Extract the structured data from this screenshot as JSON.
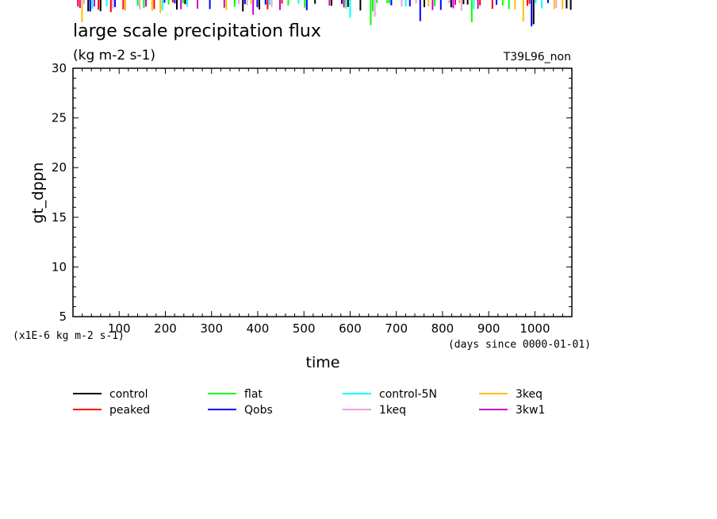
{
  "chart_data": {
    "type": "line",
    "title": "large scale precipitation flux",
    "units": "(kg m-2 s-1)",
    "run_label": "T39L96_non",
    "xlabel": "time",
    "x_unit_note": "(days since 0000-01-01)",
    "ylabel": "gt_dppn",
    "y_scale_note": "(x1E-6 kg m-2 s-1)",
    "xlim": [
      0,
      1080
    ],
    "ylim": [
      5,
      30
    ],
    "x_ticks": [
      100,
      200,
      300,
      400,
      500,
      600,
      700,
      800,
      900,
      1000
    ],
    "y_ticks": [
      5,
      10,
      15,
      20,
      25,
      30
    ],
    "grid": false,
    "legend_position": "bottom",
    "series": [
      {
        "name": "control",
        "color": "#000000"
      },
      {
        "name": "peaked",
        "color": "#ff0000"
      },
      {
        "name": "flat",
        "color": "#00ff00"
      },
      {
        "name": "Qobs",
        "color": "#0000ff"
      },
      {
        "name": "control-5N",
        "color": "#00ffff"
      },
      {
        "name": "1keq",
        "color": "#e6a0e6"
      },
      {
        "name": "3keq",
        "color": "#ffbf00"
      },
      {
        "name": "3kw1",
        "color": "#cc00cc"
      }
    ]
  }
}
